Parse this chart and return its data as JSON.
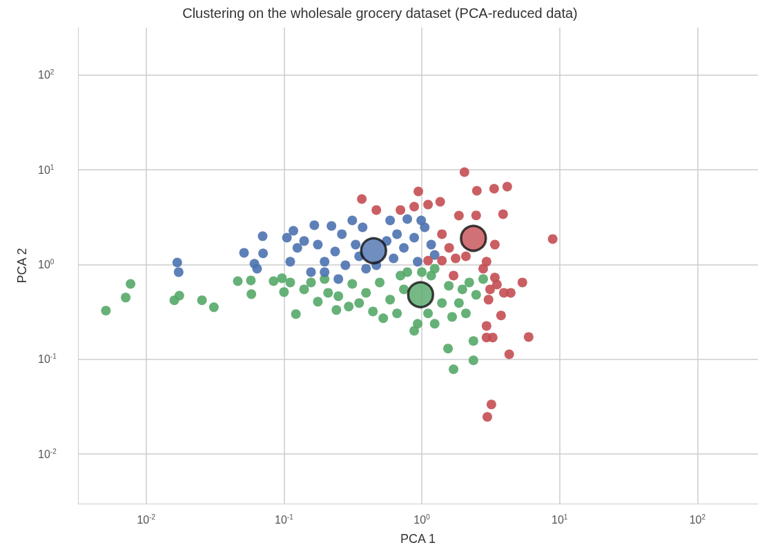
{
  "chart_data": {
    "type": "scatter",
    "title": "Clustering on the wholesale grocery dataset (PCA-reduced data)",
    "xlabel": "PCA 1",
    "ylabel": "PCA 2",
    "log": "xy",
    "grid": true,
    "marker": "circle",
    "xlim": [
      0.0032,
      275
    ],
    "ylim": [
      0.003,
      316
    ],
    "xticks": [
      {
        "value": 0.01,
        "label": "10$^{-2}$"
      },
      {
        "value": 0.1,
        "label": "10$^{-1}$"
      },
      {
        "value": 1,
        "label": "10$^{0}$"
      },
      {
        "value": 10,
        "label": "10$^{1}$"
      },
      {
        "value": 100,
        "label": "10$^{2}$"
      }
    ],
    "yticks": [
      {
        "value": 0.01,
        "label": "10$^{-2}$"
      },
      {
        "value": 0.1,
        "label": "10$^{-1}$"
      },
      {
        "value": 1,
        "label": "10$^{0}$"
      },
      {
        "value": 10,
        "label": "10$^{1}$"
      },
      {
        "value": 100,
        "label": "10$^{2}$"
      }
    ],
    "series": [
      {
        "color": "#55a868",
        "x": [
          0.0051,
          0.0071,
          0.0077,
          0.016,
          0.0174,
          0.0254,
          0.031,
          0.0462,
          0.0575,
          0.058,
          0.084,
          0.0966,
          0.1,
          0.122,
          0.111,
          0.14,
          0.176,
          0.197,
          0.248,
          0.24,
          0.313,
          0.351,
          0.394,
          0.442,
          0.495,
          0.525,
          0.589,
          0.661,
          0.741,
          0.785,
          0.881,
          0.933,
          1.11,
          1.17,
          1.24,
          1.4,
          1.57,
          1.66,
          1.86,
          1.97,
          2.09,
          2.21,
          2.48,
          2.79,
          2.37,
          1.55,
          2.37,
          1.7,
          1.24,
          1.0,
          0.7,
          0.157,
          0.209,
          0.295
        ],
        "values": [
          0.326,
          0.448,
          0.625,
          0.42,
          0.47,
          0.42,
          0.354,
          0.668,
          0.68,
          0.487,
          0.668,
          0.716,
          0.512,
          0.3,
          0.647,
          0.547,
          0.405,
          0.703,
          0.463,
          0.331,
          0.625,
          0.392,
          0.503,
          0.32,
          0.647,
          0.271,
          0.426,
          0.305,
          0.547,
          0.832,
          0.2,
          0.237,
          0.305,
          0.765,
          0.237,
          0.392,
          0.596,
          0.28,
          0.392,
          0.547,
          0.305,
          0.647,
          0.479,
          0.703,
          0.156,
          0.13,
          0.0975,
          0.0785,
          0.904,
          0.832,
          0.765,
          0.647,
          0.503,
          0.36
        ]
      },
      {
        "color": "#4c72b0",
        "x": [
          0.0168,
          0.0172,
          0.0513,
          0.061,
          0.0638,
          0.07,
          0.0705,
          0.105,
          0.111,
          0.117,
          0.125,
          0.14,
          0.157,
          0.166,
          0.176,
          0.197,
          0.221,
          0.235,
          0.263,
          0.279,
          0.313,
          0.331,
          0.351,
          0.372,
          0.468,
          0.556,
          0.589,
          0.624,
          0.661,
          0.741,
          0.785,
          0.881,
          0.933,
          1.05,
          1.17,
          0.99,
          1.24,
          0.248,
          0.197,
          0.394
        ],
        "values": [
          1.05,
          0.832,
          1.33,
          1.02,
          0.904,
          1.99,
          1.31,
          1.92,
          1.07,
          2.27,
          1.5,
          1.77,
          0.832,
          2.6,
          1.62,
          1.07,
          2.55,
          1.37,
          2.09,
          0.983,
          2.92,
          1.62,
          1.22,
          2.47,
          0.983,
          1.77,
          2.92,
          1.16,
          2.09,
          1.5,
          3.02,
          1.92,
          1.07,
          2.47,
          1.62,
          2.92,
          1.26,
          0.703,
          0.832,
          0.904
        ]
      },
      {
        "color": "#c44e52",
        "x": [
          0.367,
          0.468,
          0.7,
          0.944,
          1.11,
          1.36,
          0.881,
          2.04,
          2.51,
          3.35,
          4.17,
          1.86,
          2.48,
          3.89,
          1.4,
          1.58,
          1.76,
          1.4,
          2.09,
          2.79,
          3.39,
          3.39,
          3.51,
          3.13,
          3.94,
          5.37,
          4.42,
          3.05,
          3.76,
          2.95,
          2.95,
          3.27,
          5.96,
          4.31,
          3.2,
          2.99,
          8.91,
          1.7,
          1.11,
          2.95
        ],
        "values": [
          4.91,
          3.76,
          3.76,
          5.9,
          4.29,
          4.59,
          4.08,
          9.44,
          6.0,
          6.31,
          6.64,
          3.28,
          3.3,
          3.4,
          2.09,
          1.5,
          1.16,
          1.1,
          1.22,
          0.904,
          1.62,
          0.728,
          0.615,
          0.547,
          0.503,
          0.647,
          0.503,
          0.426,
          0.29,
          0.225,
          0.17,
          0.17,
          0.172,
          0.113,
          0.0334,
          0.0247,
          1.86,
          0.765,
          1.1,
          1.07
        ]
      },
      {
        "colors": [
          "#4c72b0",
          "#55a868",
          "#c44e52"
        ],
        "x": [
          0.447,
          0.98,
          2.37
        ],
        "values": [
          1.4,
          0.48,
          1.89
        ]
      }
    ]
  }
}
